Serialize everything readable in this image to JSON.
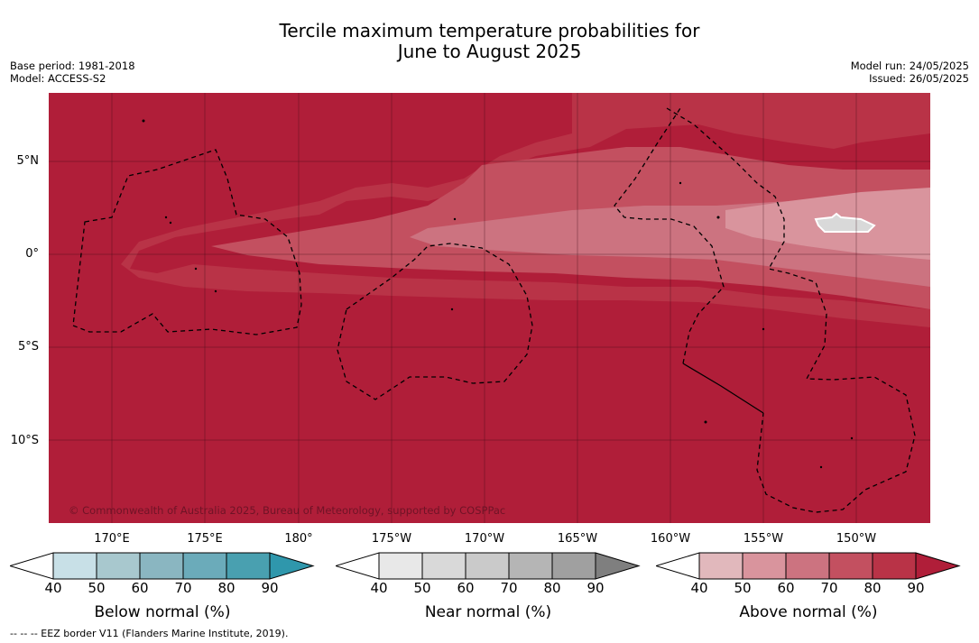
{
  "title": {
    "line1": "Tercile maximum temperature probabilities for",
    "line2": "June to August 2025"
  },
  "meta_left": {
    "base_period": "Base period: 1981-2018",
    "model": "Model: ACCESS-S2"
  },
  "meta_right": {
    "model_run": "Model run: 24/05/2025",
    "issued": "Issued: 26/05/2025"
  },
  "map": {
    "copyright": "© Commonwealth of Australia 2025, Bureau of Meteorology, supported by COSPPac",
    "lat_labels": [
      "5°N",
      "0°",
      "5°S",
      "10°S"
    ],
    "lon_labels": [
      "170°E",
      "175°E",
      "180°",
      "175°W",
      "170°W",
      "165°W",
      "160°W",
      "155°W",
      "150°W"
    ],
    "background_color": "#b01e39",
    "colors": {
      "above_90": "#b01e39",
      "above_80": "#b93347",
      "above_70": "#c35060",
      "above_60": "#cc7380",
      "above_50": "#d9949d",
      "near_normal_patch": "#d9d9d9"
    }
  },
  "colorbars": [
    {
      "label": "Below normal (%)",
      "ticks": [
        "40",
        "50",
        "60",
        "70",
        "80",
        "90"
      ],
      "colors": [
        "#ffffff",
        "#c8e0e7",
        "#a8c8ce",
        "#8ab6c1",
        "#6babba",
        "#49a0b0",
        "#2f97ac"
      ]
    },
    {
      "label": "Near normal (%)",
      "ticks": [
        "40",
        "50",
        "60",
        "70",
        "80",
        "90"
      ],
      "colors": [
        "#ffffff",
        "#e8e8e8",
        "#d9d9d9",
        "#cacaca",
        "#b5b5b5",
        "#a0a0a0",
        "#7f7f7f"
      ]
    },
    {
      "label": "Above normal (%)",
      "ticks": [
        "40",
        "50",
        "60",
        "70",
        "80",
        "90"
      ],
      "colors": [
        "#ffffff",
        "#e1b8bc",
        "#d9949d",
        "#cc7380",
        "#c35060",
        "#b93347",
        "#b01e39"
      ]
    }
  ],
  "footer": "--  --  -- EEZ border V11 (Flanders Marine Institute, 2019)."
}
